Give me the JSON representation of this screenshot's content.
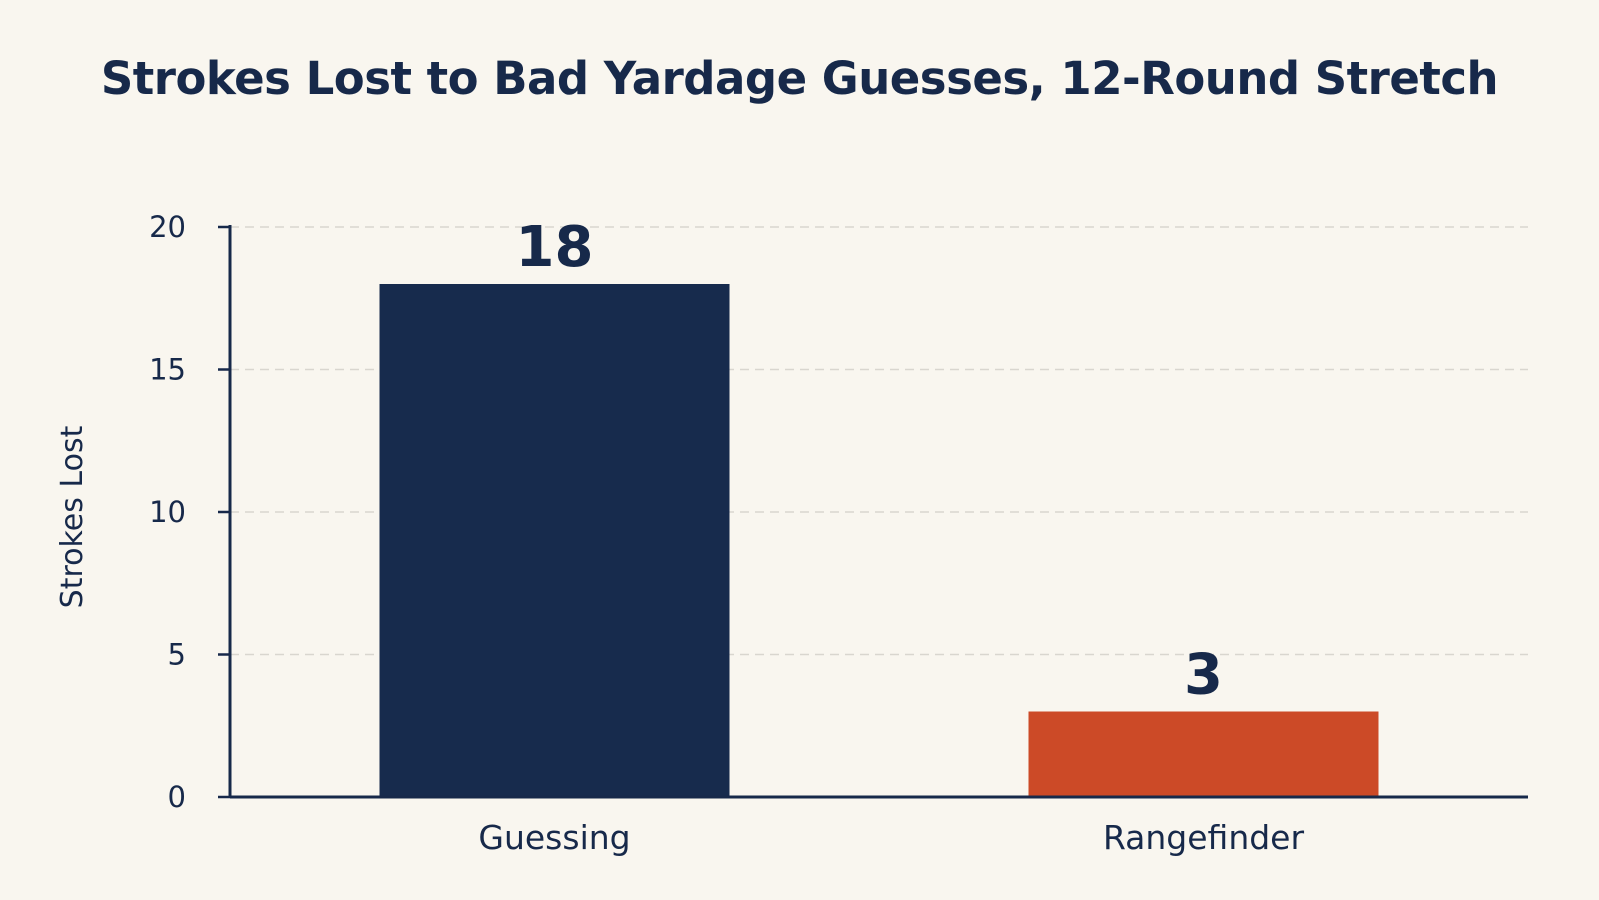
{
  "chart_data": {
    "type": "bar",
    "title": "Strokes Lost to Bad Yardage Guesses, 12-Round Stretch",
    "xlabel": "",
    "ylabel": "Strokes Lost",
    "categories": [
      "Guessing",
      "Rangefinder"
    ],
    "values": [
      18,
      3
    ],
    "data_labels": [
      "18",
      "3"
    ],
    "ylim": [
      0,
      20
    ],
    "yticks": [
      0,
      5,
      10,
      15,
      20
    ],
    "grid": true,
    "legend": "none",
    "colors": [
      "#172b4d",
      "#cc4a27"
    ]
  }
}
